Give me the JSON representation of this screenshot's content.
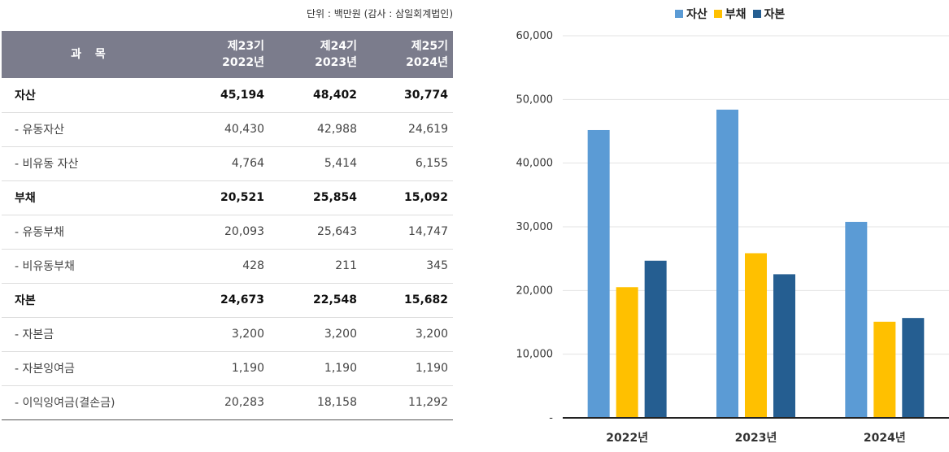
{
  "table": {
    "unit_note": "단위 : 백만원 (감사 : 삼일회계법인)",
    "header": {
      "subject": "과 목",
      "periods": [
        {
          "term": "제23기",
          "year": "2022년"
        },
        {
          "term": "제24기",
          "year": "2023년"
        },
        {
          "term": "제25기",
          "year": "2024년"
        }
      ]
    },
    "rows": [
      {
        "kind": "main",
        "label": "자산",
        "values": [
          "45,194",
          "48,402",
          "30,774"
        ]
      },
      {
        "kind": "sub",
        "label": "- 유동자산",
        "values": [
          "40,430",
          "42,988",
          "24,619"
        ]
      },
      {
        "kind": "sub",
        "label": "- 비유동 자산",
        "values": [
          "4,764",
          "5,414",
          "6,155"
        ]
      },
      {
        "kind": "main",
        "label": "부채",
        "values": [
          "20,521",
          "25,854",
          "15,092"
        ]
      },
      {
        "kind": "sub",
        "label": "- 유동부채",
        "values": [
          "20,093",
          "25,643",
          "14,747"
        ]
      },
      {
        "kind": "sub",
        "label": "- 비유동부채",
        "values": [
          "428",
          "211",
          "345"
        ]
      },
      {
        "kind": "main",
        "label": "자본",
        "values": [
          "24,673",
          "22,548",
          "15,682"
        ]
      },
      {
        "kind": "sub",
        "label": "- 자본금",
        "values": [
          "3,200",
          "3,200",
          "3,200"
        ]
      },
      {
        "kind": "sub",
        "label": "- 자본잉여금",
        "values": [
          "1,190",
          "1,190",
          "1,190"
        ]
      },
      {
        "kind": "sub",
        "label": "- 이익잉여금(결손금)",
        "values": [
          "20,283",
          "18,158",
          "11,292"
        ]
      }
    ]
  },
  "chart_data": {
    "type": "bar",
    "categories": [
      "2022년",
      "2023년",
      "2024년"
    ],
    "series": [
      {
        "name": "자산",
        "color": "#5b9bd5",
        "values": [
          45194,
          48402,
          30774
        ]
      },
      {
        "name": "부채",
        "color": "#ffc000",
        "values": [
          20521,
          25854,
          15092
        ]
      },
      {
        "name": "자본",
        "color": "#255e91",
        "values": [
          24673,
          22548,
          15682
        ]
      }
    ],
    "ylim": [
      0,
      60000
    ],
    "yticks": [
      0,
      10000,
      20000,
      30000,
      40000,
      50000,
      60000
    ],
    "ytick_labels": [
      "-",
      "10,000",
      "20,000",
      "30,000",
      "40,000",
      "50,000",
      "60,000"
    ],
    "grid": true,
    "legend_position": "top"
  }
}
